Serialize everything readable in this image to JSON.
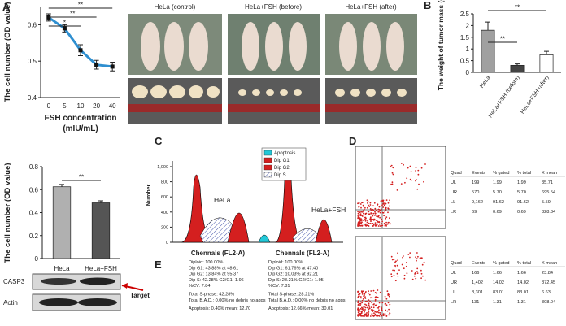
{
  "panel_labels": [
    "A",
    "B",
    "C",
    "D",
    "E"
  ],
  "chart_data": [
    {
      "type": "line",
      "ylabel": "The cell number (OD value)",
      "xlabel": "FSH concentration",
      "xunit": "(mIU/mL)",
      "categories": [
        "0",
        "5",
        "10",
        "20",
        "40"
      ],
      "values": [
        0.62,
        0.59,
        0.53,
        0.49,
        0.485
      ],
      "errors": [
        0.01,
        0.01,
        0.015,
        0.012,
        0.012
      ],
      "color": "#2f8fd0",
      "ylim": [
        0.4,
        0.65
      ],
      "yticks": [
        0.4,
        0.5,
        0.6
      ],
      "significance": [
        "**",
        "**",
        "*"
      ]
    },
    {
      "type": "bar",
      "ylabel": "The cell number (OD value)",
      "categories": [
        "HeLa",
        "HeLa+FSH"
      ],
      "values": [
        0.625,
        0.485
      ],
      "errors": [
        0.02,
        0.018
      ],
      "colors": [
        "#b0b0b0",
        "#555555"
      ],
      "ylim": [
        0,
        0.8
      ],
      "yticks": [
        0,
        0.2,
        0.4,
        0.6,
        0.8
      ],
      "significance": [
        "**"
      ]
    },
    {
      "type": "bar",
      "ylabel": "The weight of tumor mass (g)",
      "categories": [
        "HeLa",
        "HeLa+FSH (before)",
        "HeLa+FSH (after)"
      ],
      "values": [
        1.8,
        0.3,
        0.75
      ],
      "errors": [
        0.35,
        0.06,
        0.15
      ],
      "colors": [
        "#a0a0a0",
        "#444444",
        "#ffffff"
      ],
      "ylim": [
        0,
        2.5
      ],
      "yticks": [
        0,
        0.5,
        1,
        1.5,
        2,
        2.5
      ],
      "significance": [
        "**",
        "**"
      ]
    }
  ],
  "photos": {
    "labels": [
      "HeLa (control)",
      "HeLa+FSH (before)",
      "HeLa+FSH (after)"
    ]
  },
  "western": {
    "bands": [
      "CASP3",
      "Actin"
    ],
    "arrow_label": "Target"
  },
  "cell_cycle": {
    "legend": [
      "Apoptosis",
      "Dip G1",
      "Dip G2",
      "Dip S"
    ],
    "ylabel": "Number",
    "yticks": [
      "1,000",
      "800",
      "600",
      "400",
      "200",
      "0"
    ],
    "peak_labels": [
      "HeLa",
      "HeLa+FSH"
    ],
    "xlabels": [
      "Chennals (FL2-A)",
      "Chennals (FL2-A)"
    ],
    "stats": [
      [
        "Diploid: 100.00%",
        "Dip G1: 43.88% at 48.61",
        "Dip G2: 13.84% at 95.37",
        "Dip S: 42.28% G2/G1: 1.96",
        "%CV: 7.84",
        "Total S-phase: 42.28%",
        "Total B.A.D.: 0.00% no debris no aggs",
        "Apoptosis: 0.40% mean: 12.70"
      ],
      [
        "Diploid: 100.00%",
        "Dip G1: 61.76% at 47.40",
        "Dip G2: 10.03% at 92.21",
        "Dip S: 28.21% G2/G1: 1.95",
        "%CV: 7.81",
        "Total S-phase: 28.21%",
        "Total B.A.D.: 0.00% no debris no aggs",
        "Apoptosis: 12.66% mean: 30.01"
      ]
    ]
  },
  "flow": {
    "header": [
      "Quad",
      "Events",
      "% gated",
      "% total",
      "X mean"
    ],
    "tables": [
      {
        "rows": [
          [
            "UL",
            "199",
            "1.99",
            "1.99",
            "35.71"
          ],
          [
            "UR",
            "570",
            "5.70",
            "5.70",
            "695.54"
          ],
          [
            "LL",
            "9,162",
            "91.62",
            "91.62",
            "5.59"
          ],
          [
            "LR",
            "69",
            "0.69",
            "0.69",
            "328.34"
          ]
        ]
      },
      {
        "rows": [
          [
            "UL",
            "166",
            "1.66",
            "1.66",
            "23.84"
          ],
          [
            "UR",
            "1,402",
            "14.02",
            "14.02",
            "872.45"
          ],
          [
            "LL",
            "8,301",
            "83.01",
            "83.01",
            "6.63"
          ],
          [
            "LR",
            "131",
            "1.31",
            "1.31",
            "308.04"
          ]
        ]
      }
    ]
  }
}
